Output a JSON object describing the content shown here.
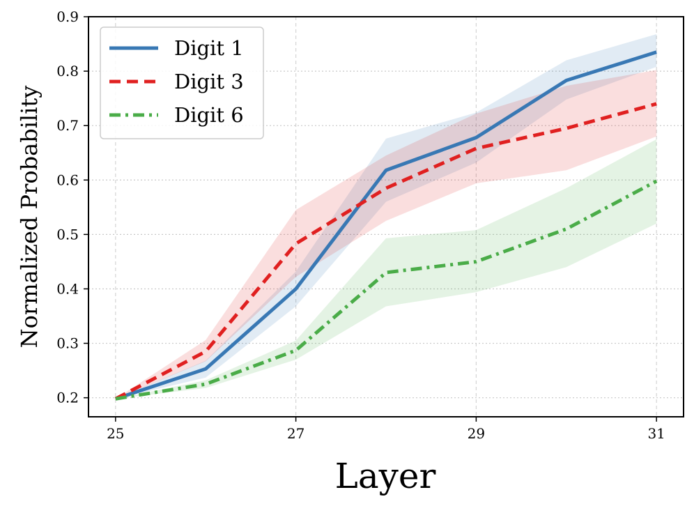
{
  "chart_data": {
    "type": "line",
    "title": "",
    "xlabel": "Layer",
    "ylabel": "Normalized Probability",
    "x": [
      25,
      26,
      27,
      28,
      29,
      30,
      31
    ],
    "xticks": [
      25,
      27,
      29,
      31
    ],
    "xtick_labels": [
      "25",
      "27",
      "29",
      "31"
    ],
    "yticks": [
      0.2,
      0.3,
      0.4,
      0.5,
      0.6,
      0.7,
      0.8,
      0.9
    ],
    "ytick_labels": [
      "0.2",
      "0.3",
      "0.4",
      "0.5",
      "0.6",
      "0.7",
      "0.8",
      "0.9"
    ],
    "xlim": [
      24.7,
      31.3
    ],
    "ylim": [
      0.165,
      0.9
    ],
    "grid": true,
    "legend_position": "top-left",
    "series": [
      {
        "name": "Digit 1",
        "color": "#3878b4",
        "dash": "solid",
        "values": [
          0.198,
          0.253,
          0.4,
          0.618,
          0.678,
          0.783,
          0.835
        ],
        "lower": [
          0.198,
          0.237,
          0.368,
          0.56,
          0.632,
          0.748,
          0.808
        ],
        "upper": [
          0.198,
          0.268,
          0.432,
          0.676,
          0.724,
          0.82,
          0.868
        ]
      },
      {
        "name": "Digit 3",
        "color": "#e02020",
        "dash": "dashed",
        "values": [
          0.198,
          0.285,
          0.483,
          0.585,
          0.658,
          0.695,
          0.74
        ],
        "lower": [
          0.198,
          0.267,
          0.422,
          0.525,
          0.594,
          0.618,
          0.68
        ],
        "upper": [
          0.198,
          0.306,
          0.545,
          0.645,
          0.722,
          0.773,
          0.802
        ]
      },
      {
        "name": "Digit 6",
        "color": "#4aac48",
        "dash": "dashdot",
        "values": [
          0.198,
          0.225,
          0.287,
          0.43,
          0.45,
          0.51,
          0.598
        ],
        "lower": [
          0.198,
          0.218,
          0.27,
          0.368,
          0.394,
          0.44,
          0.52
        ],
        "upper": [
          0.198,
          0.232,
          0.305,
          0.493,
          0.508,
          0.585,
          0.675
        ]
      }
    ]
  }
}
